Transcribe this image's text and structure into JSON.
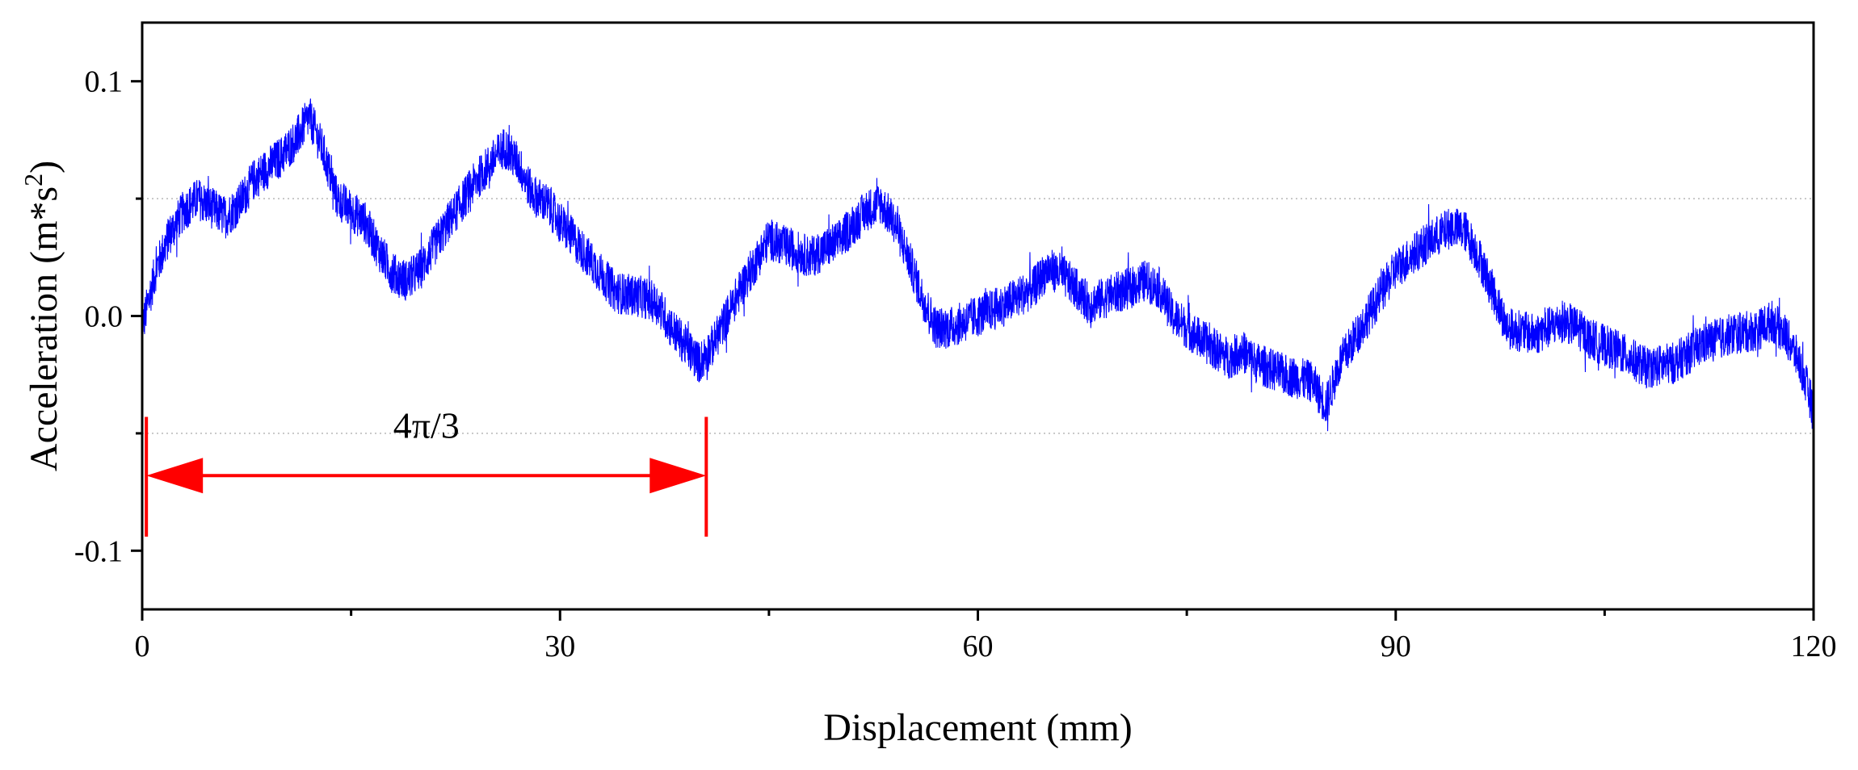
{
  "chart_data": {
    "type": "line",
    "title": "",
    "xlabel": "Displacement (mm)",
    "ylabel_main": "Acceleration (m*s",
    "ylabel_sup": "2",
    "ylabel_close": ")",
    "xlim": [
      0,
      120
    ],
    "ylim": [
      -0.125,
      0.125
    ],
    "x_ticks": [
      0,
      30,
      60,
      90,
      120
    ],
    "x_tick_labels": [
      "0",
      "30",
      "60",
      "90",
      "120"
    ],
    "x_minor_ticks": [
      15,
      45,
      75,
      105
    ],
    "y_ticks": [
      0.1,
      0.0,
      -0.1
    ],
    "y_tick_labels": [
      "0.1",
      "0.0",
      "-0.1"
    ],
    "y_minor_ticks": [
      0.05,
      -0.05
    ],
    "grid": "dotted horizontal lines at y = 0.05 and y = -0.05",
    "series": [
      {
        "color": "#0000ff",
        "noise_amplitude": 0.009,
        "x": [
          0,
          1,
          2,
          3,
          4,
          6,
          7,
          8,
          10,
          11,
          12,
          13,
          14,
          16,
          17,
          18,
          19,
          20,
          22,
          24,
          26,
          27,
          28,
          29,
          30,
          32,
          34,
          36,
          37,
          38,
          40,
          41,
          43,
          45,
          46,
          48,
          50,
          52,
          53,
          54,
          55,
          56,
          57,
          58,
          60,
          62,
          64,
          65,
          66,
          67,
          68,
          70,
          71,
          72,
          73,
          74,
          76,
          78,
          79,
          80,
          82,
          84,
          85,
          86,
          88,
          90,
          92,
          94,
          95,
          96,
          97,
          98,
          100,
          102,
          103,
          104,
          106,
          108,
          110,
          112,
          114,
          116,
          117,
          118,
          119,
          120
        ],
        "y": [
          -0.005,
          0.02,
          0.035,
          0.045,
          0.05,
          0.042,
          0.048,
          0.058,
          0.068,
          0.075,
          0.085,
          0.07,
          0.05,
          0.04,
          0.028,
          0.018,
          0.015,
          0.02,
          0.04,
          0.058,
          0.072,
          0.065,
          0.052,
          0.048,
          0.04,
          0.025,
          0.01,
          0.008,
          0.005,
          -0.005,
          -0.02,
          -0.012,
          0.012,
          0.033,
          0.03,
          0.025,
          0.032,
          0.045,
          0.048,
          0.04,
          0.025,
          0.008,
          -0.005,
          -0.005,
          0.0,
          0.005,
          0.012,
          0.02,
          0.018,
          0.012,
          0.005,
          0.01,
          0.012,
          0.015,
          0.012,
          0.0,
          -0.01,
          -0.018,
          -0.015,
          -0.02,
          -0.025,
          -0.028,
          -0.038,
          -0.02,
          0.0,
          0.02,
          0.03,
          0.038,
          0.036,
          0.025,
          0.01,
          -0.005,
          -0.008,
          -0.002,
          -0.005,
          -0.01,
          -0.015,
          -0.022,
          -0.02,
          -0.012,
          -0.008,
          -0.006,
          -0.002,
          -0.008,
          -0.02,
          -0.04
        ]
      }
    ],
    "annotation": {
      "label": "4π/3",
      "color": "#ff0000",
      "x_start": 0.3,
      "x_end": 40.5,
      "y_arrow": -0.068,
      "y_bar_top": -0.043,
      "y_bar_bottom": -0.094,
      "y_label": -0.052
    }
  }
}
